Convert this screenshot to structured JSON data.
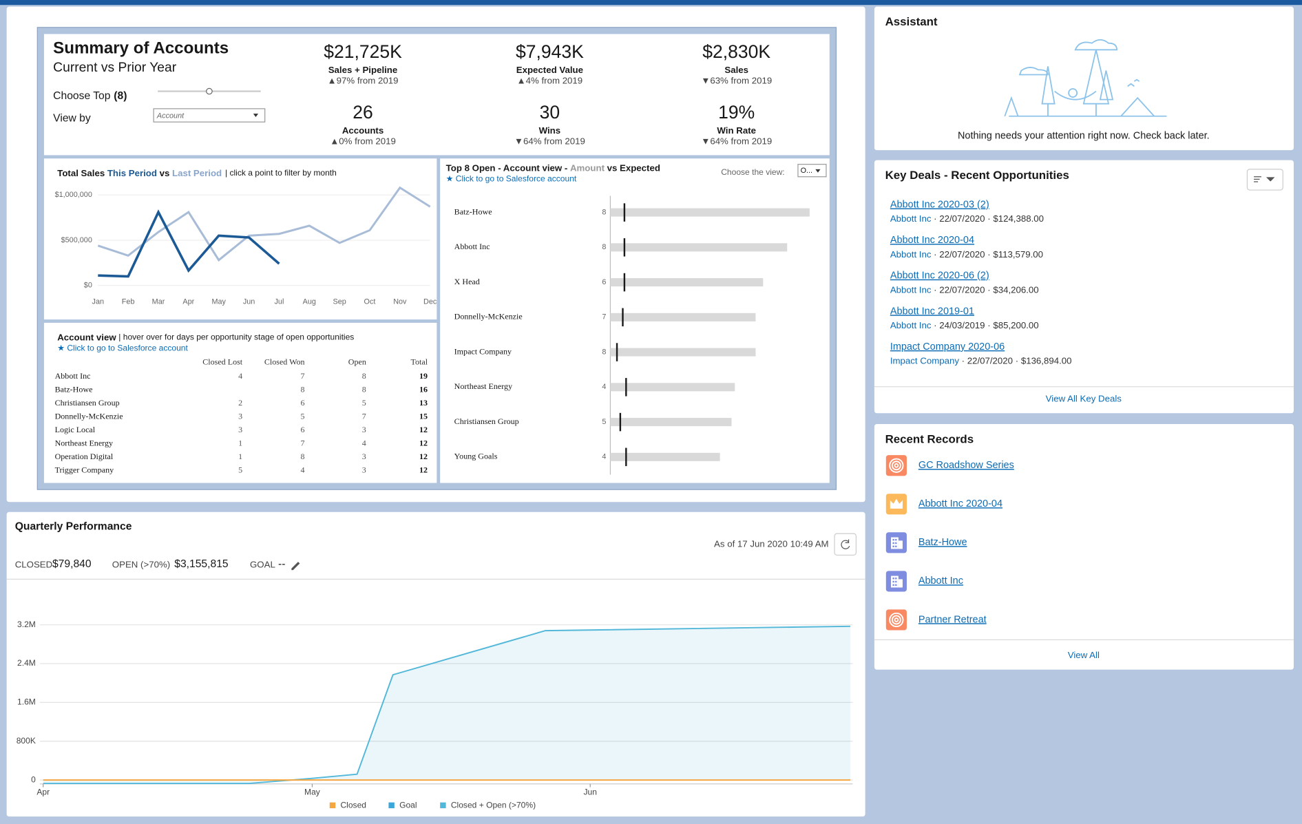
{
  "summary": {
    "title": "Summary of Accounts",
    "subtitle": "Current vs Prior Year",
    "choose_top": "Choose Top",
    "choose_top_value": "(8)",
    "view_by": "View by",
    "view_by_value": "Account",
    "kpis": [
      {
        "value": "$21,725K",
        "label": "Sales + Pipeline",
        "change": "▲97% from 2019"
      },
      {
        "value": "$7,943K",
        "label": "Expected Value",
        "change": "▲4% from 2019"
      },
      {
        "value": "$2,830K",
        "label": "Sales",
        "change": "▼63% from 2019"
      },
      {
        "value": "26",
        "label": "Accounts",
        "change": "▲0% from 2019"
      },
      {
        "value": "30",
        "label": "Wins",
        "change": "▼64% from 2019"
      },
      {
        "value": "19%",
        "label": "Win Rate",
        "change": "▼64% from 2019"
      }
    ]
  },
  "sales_chart": {
    "type": "line",
    "title": "Total Sales",
    "connector": "vs",
    "note": "| click a point to filter by month",
    "categories": [
      "Jan",
      "Feb",
      "Mar",
      "Apr",
      "May",
      "Jun",
      "Jul",
      "Aug",
      "Sep",
      "Oct",
      "Nov",
      "Dec"
    ],
    "series": [
      {
        "name": "This Period",
        "color": "#1c5a96",
        "values": [
          110000,
          100000,
          810000,
          165000,
          550000,
          530000,
          240000,
          null,
          null,
          null,
          null,
          null
        ]
      },
      {
        "name": "Last Period",
        "color": "#a8bcd8",
        "values": [
          440000,
          330000,
          590000,
          810000,
          280000,
          550000,
          570000,
          660000,
          470000,
          610000,
          1080000,
          870000
        ]
      }
    ],
    "ylim": [
      0,
      1100000
    ],
    "yticks": [
      {
        "value": 0,
        "label": "$0"
      },
      {
        "value": 500000,
        "label": "$500,000"
      },
      {
        "value": 1000000,
        "label": "$1,000,000"
      }
    ],
    "grid": true
  },
  "account_table": {
    "title": "Account view",
    "note": "| hover over for days per opportunity stage of open opportunities",
    "link": "★ Click to go to Salesforce account",
    "columns": [
      "Closed Lost",
      "Closed Won",
      "Open",
      "Total"
    ],
    "rows": [
      [
        "Abbott Inc",
        4,
        7,
        8,
        19
      ],
      [
        "Batz-Howe",
        null,
        8,
        8,
        16
      ],
      [
        "Christiansen Group",
        2,
        6,
        5,
        13
      ],
      [
        "Donnelly-McKenzie",
        3,
        5,
        7,
        15
      ],
      [
        "Logic Local",
        3,
        6,
        3,
        12
      ],
      [
        "Northeast Energy",
        1,
        7,
        4,
        12
      ],
      [
        "Operation Digital",
        1,
        8,
        3,
        12
      ],
      [
        "Trigger Company",
        5,
        4,
        3,
        12
      ]
    ]
  },
  "top_open": {
    "type": "bar",
    "title": "Top 8 Open - Account view -",
    "connector": "vs",
    "link": "★ Click to go to Salesforce account",
    "choose_view": "Choose the view:",
    "view_value": "O...",
    "categories": [
      "Batz-Howe",
      "Abbott Inc",
      "X Head",
      "Donnelly-McKenzie",
      "Impact Company",
      "Northeast Energy",
      "Christiansen Group",
      "Young Goals"
    ],
    "counts": [
      8,
      8,
      6,
      7,
      8,
      4,
      5,
      4
    ],
    "series": [
      {
        "name": "Amount",
        "color": "#d9d9d9",
        "values": [
          240,
          213,
          184,
          175,
          175,
          150,
          146,
          132
        ]
      },
      {
        "name": "Expected",
        "color": "#1a1a1a",
        "values": [
          17,
          17,
          17,
          15,
          8,
          19,
          12,
          19
        ]
      }
    ]
  },
  "assistant": {
    "title": "Assistant",
    "message": "Nothing needs your attention right now. Check back later."
  },
  "key_deals": {
    "title": "Key Deals - Recent Opportunities",
    "deals": [
      {
        "name": "Abbott Inc 2020-03 (2)",
        "account": "Abbott Inc",
        "details": "· 22/07/2020 · $124,388.00"
      },
      {
        "name": "Abbott Inc 2020-04",
        "account": "Abbott Inc",
        "details": "· 22/07/2020 · $113,579.00"
      },
      {
        "name": "Abbott Inc 2020-06 (2)",
        "account": "Abbott Inc",
        "details": "· 22/07/2020 · $34,206.00"
      },
      {
        "name": "Abbott Inc 2019-01",
        "account": "Abbott Inc",
        "details": "· 24/03/2019 · $85,200.00"
      },
      {
        "name": "Impact Company 2020-06",
        "account": "Impact Company",
        "details": "· 22/07/2020 · $136,894.00"
      }
    ],
    "view_all": "View All Key Deals"
  },
  "recent_records": {
    "title": "Recent Records",
    "records": [
      {
        "name": "GC Roadshow Series",
        "icon": "campaign"
      },
      {
        "name": "Abbott Inc 2020-04",
        "icon": "opportunity"
      },
      {
        "name": "Batz-Howe",
        "icon": "account"
      },
      {
        "name": "Abbott Inc",
        "icon": "account"
      },
      {
        "name": "Partner Retreat",
        "icon": "campaign"
      }
    ],
    "view_all": "View All"
  },
  "quarterly": {
    "title": "Quarterly Performance",
    "as_of": "As of 17 Jun 2020 10:49 AM",
    "metrics": [
      {
        "label": "CLOSED",
        "value": "$79,840"
      },
      {
        "label": "OPEN (>70%)",
        "value": "$3,155,815"
      },
      {
        "label": "GOAL",
        "value": "--"
      }
    ],
    "chart": {
      "type": "area",
      "xlim": [
        0,
        90
      ],
      "ylim": [
        -80000,
        3400000
      ],
      "xticks": [
        {
          "value": 0,
          "label": "Apr"
        },
        {
          "value": 30,
          "label": "May"
        },
        {
          "value": 61,
          "label": "Jun"
        }
      ],
      "yticks": [
        0,
        {
          "value": 800000,
          "label": "800K"
        },
        {
          "value": 1600000,
          "label": "1.6M"
        },
        {
          "value": 2400000,
          "label": "2.4M"
        },
        {
          "value": 3200000,
          "label": "3.2M"
        }
      ],
      "grid": true,
      "series": [
        {
          "name": "Closed",
          "color": "#f4a640",
          "x": [
            0,
            90
          ],
          "values": [
            0,
            0
          ]
        },
        {
          "name": "Goal",
          "color": "#3ba7d9",
          "x": [],
          "values": []
        },
        {
          "name": "Closed + Open (>70%)",
          "color": "#52b7d8",
          "x": [
            0,
            23,
            30,
            35,
            39,
            56,
            90
          ],
          "values": [
            -70000,
            -70000,
            34000,
            120000,
            2170000,
            3080000,
            3170000
          ]
        }
      ]
    }
  }
}
